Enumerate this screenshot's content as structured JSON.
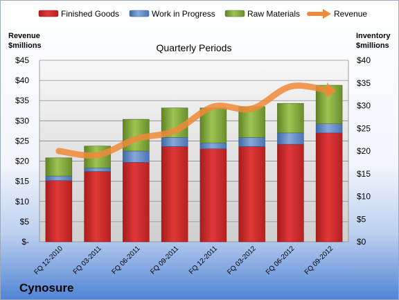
{
  "company": "Cynosure",
  "colors": {
    "finished_goods": "#d02b2b",
    "work_in_progress": "#5b84c4",
    "raw_materials": "#7fa23c",
    "revenue": "#ee8a3a"
  },
  "chart_data": {
    "type": "bar",
    "stacked": true,
    "title": "Quarterly Periods",
    "ylabel_left_line1": "Revenue",
    "ylabel_left_line2": "$millions",
    "ylabel_right_line1": "Inventory",
    "ylabel_right_line2": "$millions",
    "categories": [
      "FQ 12-2010",
      "FQ 03-2011",
      "FQ 06-2011",
      "FQ 09-2011",
      "FQ 12-2011",
      "FQ 03-2012",
      "FQ 06-2012",
      "FQ 09-2012"
    ],
    "left_axis": {
      "ylim": [
        0,
        45
      ],
      "ticks": [
        "$-",
        "$5",
        "$10",
        "$15",
        "$20",
        "$25",
        "$30",
        "$35",
        "$40",
        "$45"
      ]
    },
    "right_axis": {
      "ylim": [
        0,
        40
      ],
      "ticks": [
        "$0",
        "$5",
        "$10",
        "$15",
        "$20",
        "$25",
        "$30",
        "$35",
        "$40"
      ]
    },
    "legend_position": "top",
    "grid": true,
    "series": [
      {
        "name": "Finished Goods",
        "axis": "right",
        "values": [
          13.5,
          15.5,
          17.5,
          21.0,
          20.5,
          21.0,
          21.5,
          24.0
        ]
      },
      {
        "name": "Work in Progress",
        "axis": "right",
        "values": [
          1.0,
          0.8,
          2.5,
          2.0,
          1.3,
          2.0,
          2.5,
          2.0
        ]
      },
      {
        "name": "Raw Materials",
        "axis": "right",
        "values": [
          4.0,
          4.8,
          7.0,
          6.5,
          7.7,
          6.8,
          6.5,
          8.5
        ]
      },
      {
        "name": "Revenue",
        "axis": "left",
        "type": "line",
        "values": [
          22.5,
          21.5,
          25.5,
          27.5,
          33.5,
          33.0,
          38.5,
          37.5
        ]
      }
    ]
  }
}
